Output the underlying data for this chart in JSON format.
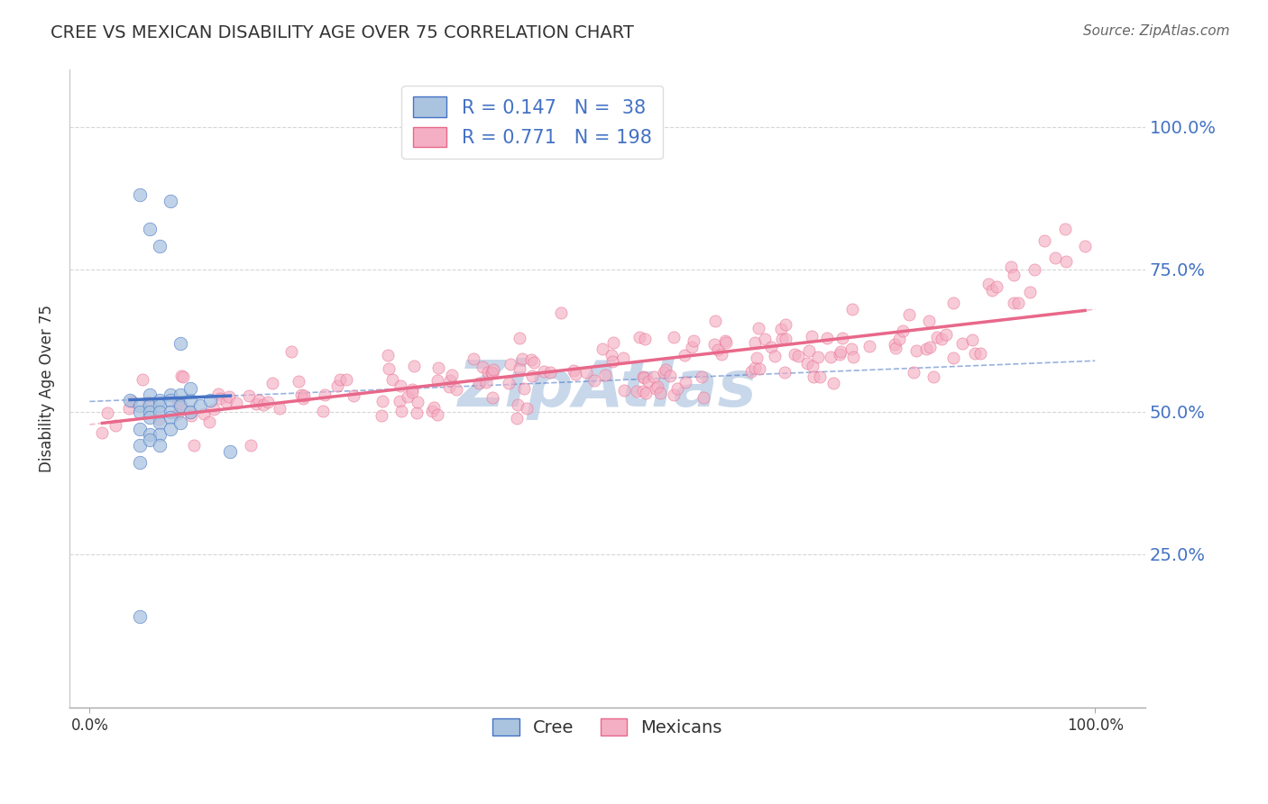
{
  "title": "CREE VS MEXICAN DISABILITY AGE OVER 75 CORRELATION CHART",
  "source": "Source: ZipAtlas.com",
  "ylabel": "Disability Age Over 75",
  "cree_R": 0.147,
  "cree_N": 38,
  "mexican_R": 0.771,
  "mexican_N": 198,
  "cree_color": "#aac4e0",
  "cree_line_color": "#4472c4",
  "mexican_color": "#f4afc4",
  "mexican_line_color": "#e8688a",
  "label_color": "#4472c4",
  "grid_color": "#cccccc",
  "background_color": "#ffffff",
  "watermark_color": "#c8d8ea",
  "xlim": [
    -0.02,
    1.05
  ],
  "ylim": [
    -0.02,
    1.1
  ]
}
